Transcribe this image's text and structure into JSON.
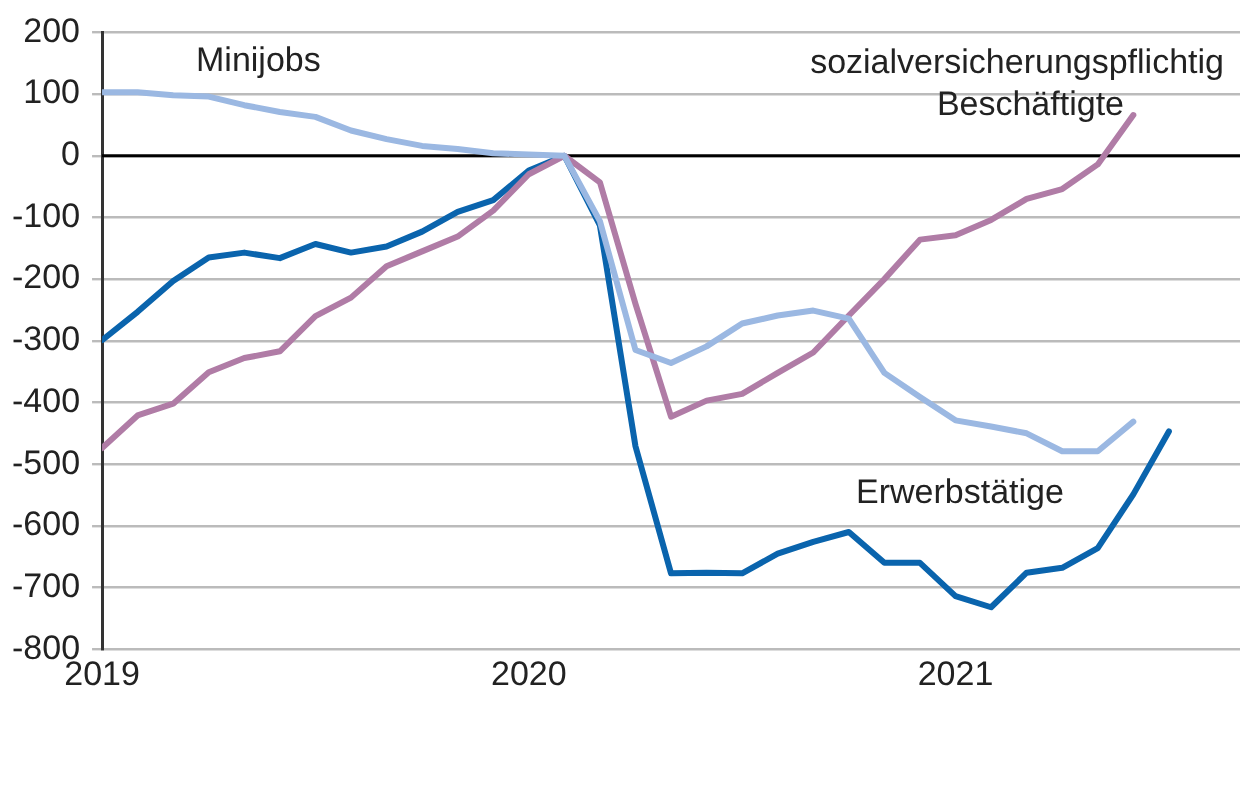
{
  "chart_data": {
    "type": "line",
    "x": [
      "2019-01",
      "2019-02",
      "2019-03",
      "2019-04",
      "2019-05",
      "2019-06",
      "2019-07",
      "2019-08",
      "2019-09",
      "2019-10",
      "2019-11",
      "2019-12",
      "2020-01",
      "2020-02",
      "2020-03",
      "2020-04",
      "2020-05",
      "2020-06",
      "2020-07",
      "2020-08",
      "2020-09",
      "2020-10",
      "2020-11",
      "2020-12",
      "2021-01",
      "2021-02",
      "2021-03",
      "2021-04",
      "2021-05",
      "2021-06",
      "2021-07"
    ],
    "series": [
      {
        "name": "Minijobs",
        "color": "#9bb8e2",
        "values": [
          103,
          103,
          98,
          96,
          82,
          71,
          63,
          41,
          27,
          16,
          11,
          4,
          2,
          0,
          -106,
          -315,
          -336,
          -309,
          -272,
          -259,
          -251,
          -264,
          -352,
          -391,
          -429,
          -439,
          -450,
          -479,
          -479,
          -431,
          null
        ]
      },
      {
        "name": "sozialversicherungspflichtig Beschäftigte",
        "color": "#b07ca6",
        "values": [
          -474,
          -421,
          -402,
          -351,
          -328,
          -317,
          -260,
          -230,
          -179,
          -155,
          -131,
          -89,
          -30,
          0,
          -43,
          -240,
          -423,
          -397,
          -386,
          -352,
          -319,
          -259,
          -200,
          -136,
          -129,
          -104,
          -70,
          -54,
          -14,
          66,
          null
        ]
      },
      {
        "name": "Erwerbstätige",
        "color": "#0a64ad",
        "values": [
          -299,
          -253,
          -203,
          -165,
          -157,
          -166,
          -143,
          -157,
          -147,
          -123,
          -91,
          -72,
          -24,
          0,
          -113,
          -471,
          -677,
          -676,
          -677,
          -645,
          -626,
          -610,
          -660,
          -660,
          -714,
          -732,
          -676,
          -668,
          -636,
          -549,
          -447
        ]
      }
    ],
    "xlim": [
      "2019-01",
      "2021-09"
    ],
    "xticks": [
      {
        "value": "2019-01",
        "label": "2019"
      },
      {
        "value": "2020-01",
        "label": "2020"
      },
      {
        "value": "2021-01",
        "label": "2021"
      }
    ],
    "ylim": [
      -800,
      200
    ],
    "yticks": [
      -800,
      -700,
      -600,
      -500,
      -400,
      -300,
      -200,
      -100,
      0,
      100,
      200
    ],
    "ref_lines": [
      {
        "axis": "y",
        "value": 0,
        "color": "#000000"
      }
    ],
    "grid": "y",
    "legend": false,
    "marker": "none",
    "line_style": "solid"
  }
}
